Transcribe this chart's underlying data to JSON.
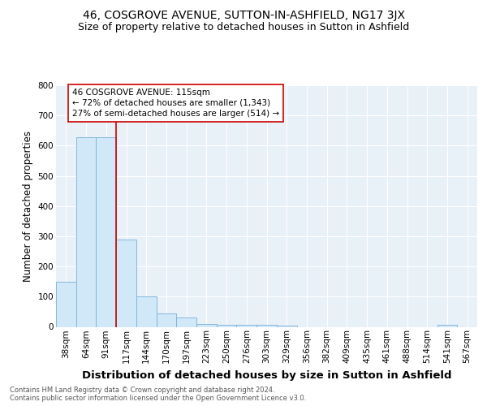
{
  "title1": "46, COSGROVE AVENUE, SUTTON-IN-ASHFIELD, NG17 3JX",
  "title2": "Size of property relative to detached houses in Sutton in Ashfield",
  "xlabel": "Distribution of detached houses by size in Sutton in Ashfield",
  "ylabel": "Number of detached properties",
  "footnote": "Contains HM Land Registry data © Crown copyright and database right 2024.\nContains public sector information licensed under the Open Government Licence v3.0.",
  "categories": [
    "38sqm",
    "64sqm",
    "91sqm",
    "117sqm",
    "144sqm",
    "170sqm",
    "197sqm",
    "223sqm",
    "250sqm",
    "276sqm",
    "303sqm",
    "329sqm",
    "356sqm",
    "382sqm",
    "409sqm",
    "435sqm",
    "461sqm",
    "488sqm",
    "514sqm",
    "541sqm",
    "567sqm"
  ],
  "values": [
    150,
    628,
    628,
    290,
    100,
    45,
    32,
    10,
    7,
    7,
    7,
    5,
    0,
    0,
    0,
    0,
    0,
    0,
    0,
    8,
    0
  ],
  "bar_color": "#d0e8f8",
  "bar_edge_color": "#7ab0d8",
  "vline_x": 2.5,
  "vline_color": "#cc0000",
  "annotation_text": "46 COSGROVE AVENUE: 115sqm\n← 72% of detached houses are smaller (1,343)\n27% of semi-detached houses are larger (514) →",
  "annotation_box_color": "#ffffff",
  "annotation_box_edge": "#cc0000",
  "ylim": [
    0,
    800
  ],
  "yticks": [
    0,
    100,
    200,
    300,
    400,
    500,
    600,
    700,
    800
  ],
  "fig_bg": "#ffffff",
  "plot_bg": "#e8f0f8",
  "grid_color": "#ffffff",
  "title1_fontsize": 10,
  "title2_fontsize": 9,
  "xlabel_fontsize": 9.5,
  "ylabel_fontsize": 8.5,
  "tick_fontsize": 7.5,
  "annot_fontsize": 7.5,
  "footnote_fontsize": 6
}
